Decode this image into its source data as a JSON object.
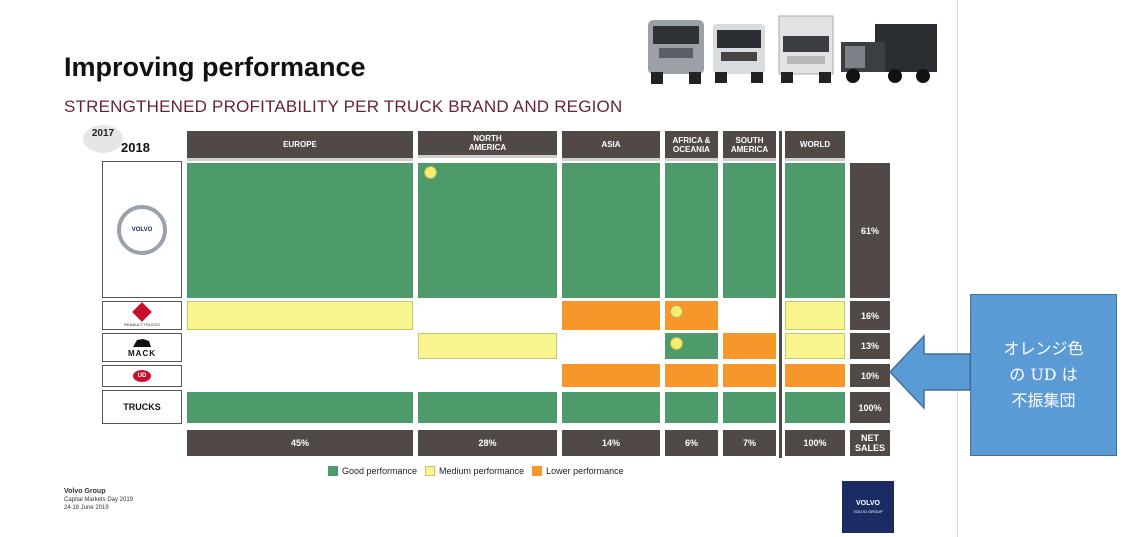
{
  "title": "Improving performance",
  "subtitle": "STRENGTHENED PROFITABILITY PER TRUCK BRAND AND REGION",
  "years": {
    "prev": "2017",
    "curr": "2018"
  },
  "regions": [
    {
      "label": "EUROPE",
      "share": "45%"
    },
    {
      "label": "NORTH AMERICA",
      "share": "28%"
    },
    {
      "label": "ASIA",
      "share": "14%"
    },
    {
      "label": "AFRICA & OCEANIA",
      "share": "6%"
    },
    {
      "label": "SOUTH AMERICA",
      "share": "7%"
    },
    {
      "label": "WORLD",
      "share": "100%"
    }
  ],
  "net_sales_label": "NET SALES",
  "brands": [
    {
      "name": "Volvo",
      "logo_text": "VOLVO",
      "share": "61%"
    },
    {
      "name": "Renault",
      "logo_text": "RENAULT TRUCKS",
      "share": "16%"
    },
    {
      "name": "Mack",
      "logo_text": "MACK",
      "share": "13%"
    },
    {
      "name": "UD",
      "logo_text": "UD",
      "share": "10%"
    },
    {
      "name": "Trucks total",
      "logo_text": "TRUCKS",
      "share": "100%"
    }
  ],
  "legend": {
    "good": "Good performance",
    "medium": "Medium performance",
    "lower": "Lower performance"
  },
  "colors": {
    "good": "#4d9a6a",
    "medium": "#f8f58e",
    "lower": "#f6962b",
    "header": "#514945"
  },
  "footer": {
    "company": "Volvo Group",
    "event": "Capital Markets Day 2019",
    "page_date": "24   18 June 2019"
  },
  "volvo_logo": {
    "text": "VOLVO",
    "sub": "VOLVO GROUP"
  },
  "callout": {
    "lines": [
      "オレンジ色",
      "の UD は",
      "不振集団"
    ]
  }
}
